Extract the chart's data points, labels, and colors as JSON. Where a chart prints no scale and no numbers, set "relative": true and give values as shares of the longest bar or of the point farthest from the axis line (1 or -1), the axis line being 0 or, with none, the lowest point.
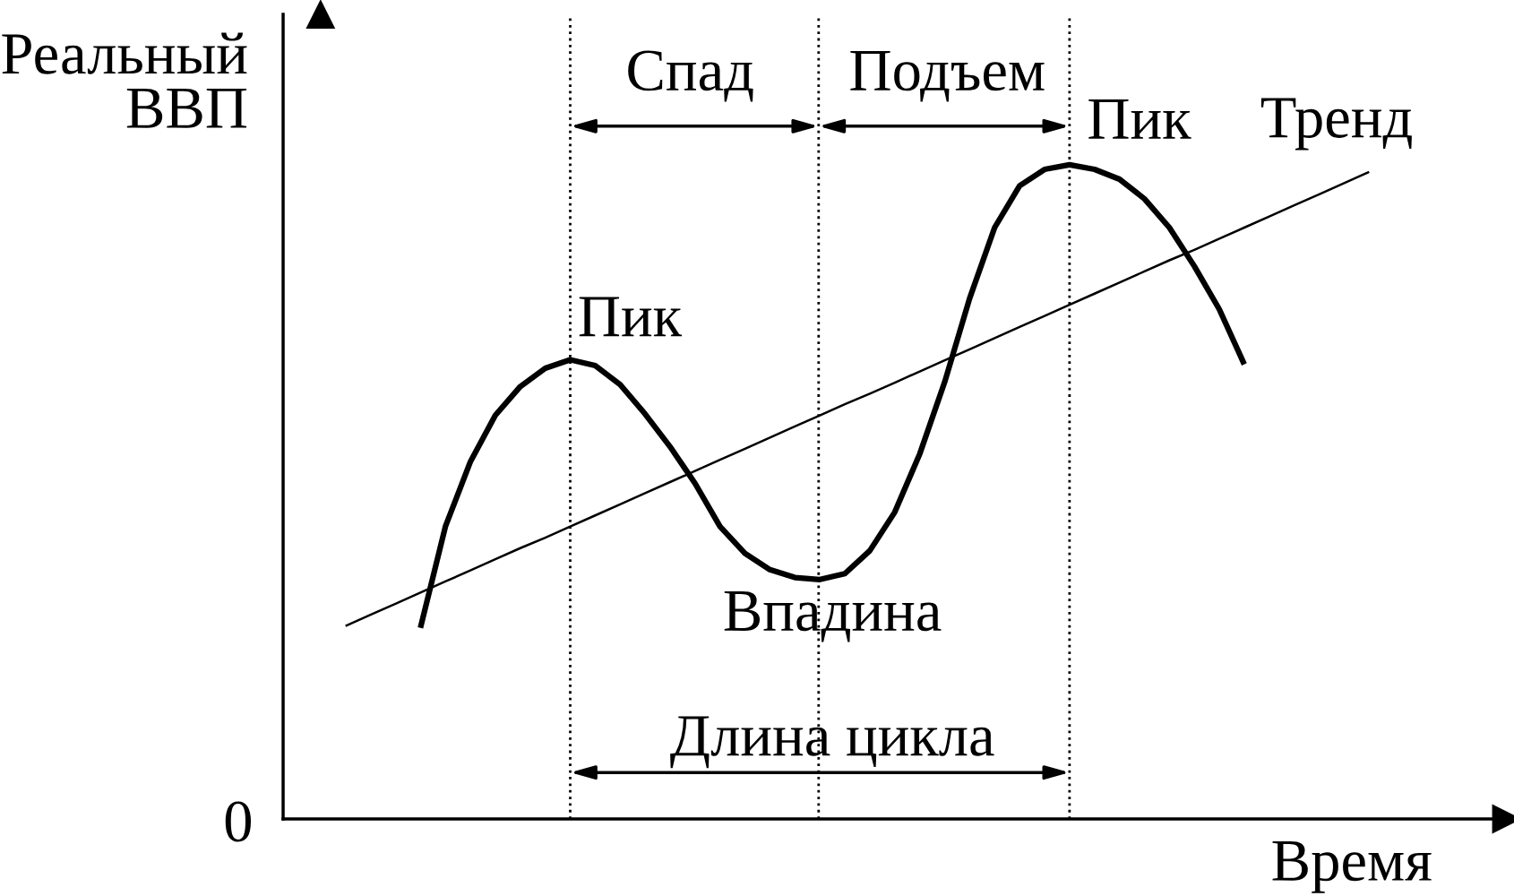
{
  "chart_data": {
    "type": "line",
    "relative": true,
    "xlabel": "Время",
    "ylabel": "Реальный\nВВП",
    "categories": [
      null,
      null,
      null,
      null,
      null,
      null,
      null,
      null,
      null,
      null,
      null,
      null,
      null,
      null,
      null,
      null,
      null,
      null,
      null,
      null,
      null,
      null,
      null,
      null,
      null,
      null,
      null,
      null,
      null,
      null,
      null,
      null,
      null,
      null,
      null,
      null,
      null,
      null,
      null,
      null,
      null,
      null,
      null,
      null,
      null,
      null,
      null,
      null
    ],
    "series": [
      {
        "color": "#000000",
        "values": [
          null,
          null,
          null,
          null,
          0.292,
          0.447,
          0.546,
          0.617,
          0.661,
          0.689,
          0.702,
          0.693,
          0.664,
          0.619,
          0.569,
          0.513,
          0.447,
          0.406,
          0.381,
          0.369,
          0.366,
          0.375,
          0.41,
          0.469,
          0.558,
          0.668,
          0.796,
          0.904,
          0.968,
          0.993,
          1.0,
          0.993,
          0.978,
          0.948,
          0.904,
          0.845,
          0.779,
          0.695,
          null,
          null,
          null,
          null,
          null,
          null,
          null,
          null,
          null,
          null
        ]
      },
      {
        "name": "Тренд",
        "color": "#000000",
        "values": [
          null,
          0.295,
          0.312,
          0.329,
          0.346,
          0.363,
          0.38,
          0.397,
          0.414,
          0.43,
          0.447,
          0.464,
          0.481,
          0.498,
          0.515,
          0.532,
          0.549,
          0.566,
          0.583,
          0.6,
          0.617,
          0.634,
          0.65,
          0.667,
          0.684,
          0.701,
          0.718,
          0.735,
          0.752,
          0.769,
          0.786,
          0.803,
          0.82,
          0.837,
          0.854,
          0.87,
          0.887,
          0.904,
          0.921,
          0.938,
          0.955,
          0.972,
          0.989,
          null,
          null,
          null,
          null,
          null
        ]
      }
    ],
    "annotations": [
      "Пик",
      "Впадина",
      "Пик",
      "Спад",
      "Подъем",
      "Длина цикла",
      "0"
    ],
    "grid": "x",
    "legend": false
  }
}
